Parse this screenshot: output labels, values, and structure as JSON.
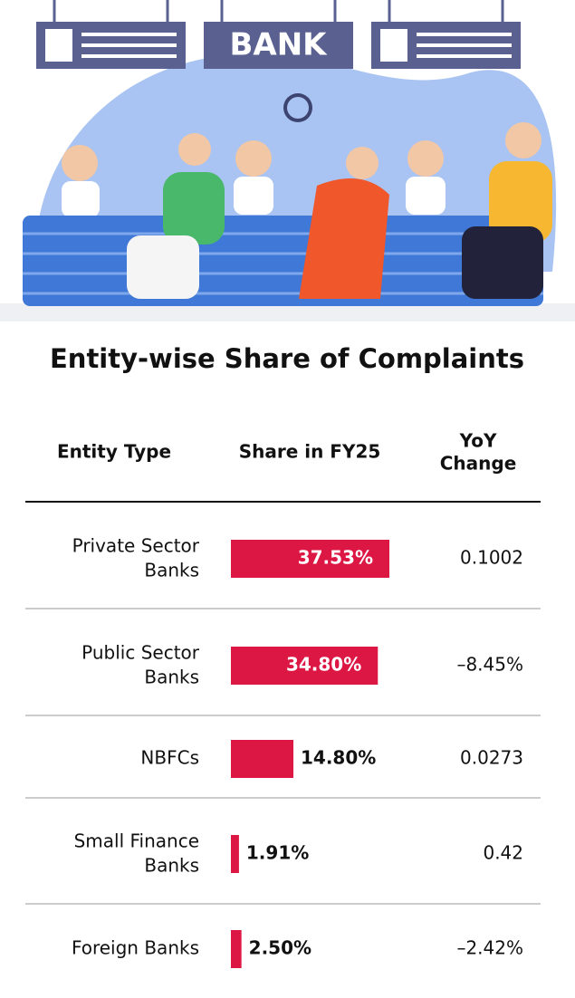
{
  "illustration_sign": "BANK",
  "chart_data": {
    "type": "bar",
    "title": "Entity-wise Share of Complaints",
    "headers": [
      "Entity Type",
      "Share in FY25",
      "YoY Change"
    ],
    "categories": [
      "Private Sector Banks",
      "Public Sector Banks",
      "NBFCs",
      "Small Finance Banks",
      "Foreign Banks"
    ],
    "values": [
      37.53,
      34.8,
      14.8,
      1.91,
      2.5
    ],
    "value_labels": [
      "37.53%",
      "34.80%",
      "14.80%",
      "1.91%",
      "2.50%"
    ],
    "yoy_change": [
      "0.1002",
      "–8.45%",
      "0.0273",
      "0.42",
      "–2.42%"
    ],
    "color": "#dc1744"
  }
}
